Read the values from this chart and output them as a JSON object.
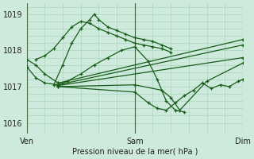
{
  "bg_color": "#cdeadc",
  "grid_color": "#a8d5bf",
  "line_color": "#1a5c1a",
  "ylim": [
    1015.7,
    1019.3
  ],
  "xlim": [
    0,
    96
  ],
  "xtick_positions": [
    0,
    48,
    96
  ],
  "xtick_labels": [
    "Ven",
    "Sam",
    "Dim"
  ],
  "ytick_positions": [
    1016,
    1017,
    1018,
    1019
  ],
  "xlabel": "Pression niveau de la mer( hPa )",
  "minor_xticks": [
    0,
    8,
    16,
    24,
    32,
    40,
    48,
    56,
    64,
    72,
    80,
    88,
    96
  ],
  "minor_yticks": [
    1016,
    1016.2,
    1016.4,
    1016.6,
    1016.8,
    1017,
    1017.2,
    1017.4,
    1017.6,
    1017.8,
    1018,
    1018.2,
    1018.4,
    1018.6,
    1018.8,
    1019,
    1019.2
  ],
  "lines": [
    {
      "x": [
        12,
        16,
        20,
        24,
        28,
        30,
        32,
        36,
        40,
        44,
        48,
        52,
        56,
        60,
        64
      ],
      "y": [
        1017.05,
        1017.6,
        1018.2,
        1018.6,
        1018.85,
        1019.0,
        1018.85,
        1018.65,
        1018.55,
        1018.45,
        1018.35,
        1018.3,
        1018.25,
        1018.15,
        1018.05
      ]
    },
    {
      "x": [
        4,
        8,
        12,
        16,
        20,
        24,
        28,
        32,
        36,
        40,
        44,
        48,
        52,
        56,
        60,
        64
      ],
      "y": [
        1017.75,
        1017.85,
        1018.05,
        1018.35,
        1018.65,
        1018.8,
        1018.75,
        1018.6,
        1018.5,
        1018.4,
        1018.3,
        1018.2,
        1018.15,
        1018.1,
        1018.05,
        1017.95
      ]
    },
    {
      "x": [
        14,
        18,
        24,
        30,
        36,
        42,
        48,
        54,
        58,
        62,
        66,
        70
      ],
      "y": [
        1017.05,
        1017.15,
        1017.35,
        1017.6,
        1017.8,
        1018.0,
        1018.1,
        1017.7,
        1017.2,
        1016.6,
        1016.35,
        1016.3
      ]
    },
    {
      "x": [
        14,
        96
      ],
      "y": [
        1017.1,
        1018.3
      ]
    },
    {
      "x": [
        14,
        96
      ],
      "y": [
        1017.05,
        1018.15
      ]
    },
    {
      "x": [
        14,
        96
      ],
      "y": [
        1017.03,
        1017.8
      ]
    },
    {
      "x": [
        14,
        48,
        60,
        64,
        68,
        80,
        96
      ],
      "y": [
        1017.0,
        1017.05,
        1016.9,
        1016.7,
        1016.35,
        1017.15,
        1017.65
      ]
    },
    {
      "x": [
        14,
        48,
        54,
        58,
        62,
        66,
        70,
        74,
        78,
        82,
        86,
        90,
        94,
        96
      ],
      "y": [
        1017.0,
        1016.85,
        1016.55,
        1016.4,
        1016.35,
        1016.55,
        1016.75,
        1016.9,
        1017.1,
        1016.95,
        1017.05,
        1017.0,
        1017.15,
        1017.2
      ]
    },
    {
      "x": [
        0,
        4,
        8,
        14
      ],
      "y": [
        1017.55,
        1017.25,
        1017.1,
        1017.05
      ]
    },
    {
      "x": [
        0,
        4,
        8,
        14
      ],
      "y": [
        1017.75,
        1017.6,
        1017.35,
        1017.1
      ]
    }
  ]
}
